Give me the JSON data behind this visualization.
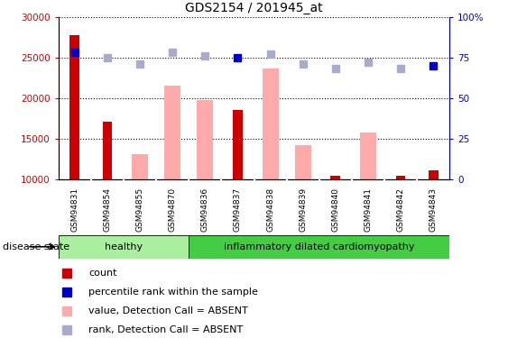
{
  "title": "GDS2154 / 201945_at",
  "samples": [
    "GSM94831",
    "GSM94854",
    "GSM94855",
    "GSM94870",
    "GSM94836",
    "GSM94837",
    "GSM94838",
    "GSM94839",
    "GSM94840",
    "GSM94841",
    "GSM94842",
    "GSM94843"
  ],
  "count_values": [
    27800,
    17100,
    null,
    null,
    null,
    18500,
    null,
    null,
    10400,
    null,
    10400,
    11100
  ],
  "absent_value_bars": [
    null,
    null,
    13100,
    21500,
    19800,
    null,
    23600,
    14200,
    null,
    15800,
    null,
    null
  ],
  "percentile_rank": [
    78,
    null,
    null,
    null,
    null,
    75,
    null,
    null,
    null,
    null,
    null,
    70
  ],
  "absent_rank_values": [
    null,
    75,
    71,
    78,
    76,
    null,
    77,
    71,
    68,
    72,
    68,
    null
  ],
  "ylim_left": [
    10000,
    30000
  ],
  "ylim_right": [
    0,
    100
  ],
  "yticks_left": [
    10000,
    15000,
    20000,
    25000,
    30000
  ],
  "yticks_right": [
    0,
    25,
    50,
    75,
    100
  ],
  "ytick_labels_left": [
    "10000",
    "15000",
    "20000",
    "25000",
    "30000"
  ],
  "ytick_labels_right": [
    "0",
    "25",
    "50",
    "75",
    "100%"
  ],
  "healthy_count": 4,
  "disease_count": 8,
  "disease_label": "inflammatory dilated cardiomyopathy",
  "healthy_label": "healthy",
  "disease_state_label": "disease state",
  "legend_items": [
    "count",
    "percentile rank within the sample",
    "value, Detection Call = ABSENT",
    "rank, Detection Call = ABSENT"
  ],
  "count_color": "#cc0000",
  "absent_bar_color": "#ffaaaa",
  "percentile_color": "#0000cc",
  "absent_rank_color": "#aaaacc",
  "healthy_bg": "#aaeea0",
  "disease_bg": "#44cc44",
  "tick_bg": "#cccccc",
  "figsize": [
    5.63,
    3.75
  ],
  "dpi": 100
}
